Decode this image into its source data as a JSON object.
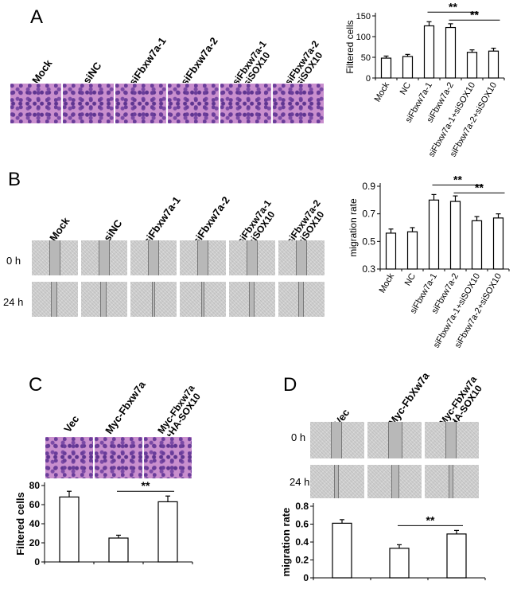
{
  "panels": {
    "A": {
      "letter": "A",
      "image_labels": [
        "Mock",
        "siNC",
        "siFbxw7a-1",
        "siFbxw7a-2",
        "siFbxw7a-1\n+siSOX10",
        "siFbxw7a-2\n+siSOX10"
      ]
    },
    "B": {
      "letter": "B",
      "image_labels": [
        "Mock",
        "siNC",
        "siFbxw7a-1",
        "siFbxw7a-2",
        "siFbxw7a-1\n+siSOX10",
        "siFbxw7a-2\n+siSOX10"
      ],
      "row_labels": [
        "0 h",
        "24 h"
      ]
    },
    "C": {
      "letter": "C",
      "image_labels": [
        "Vec",
        "Myc-Fbxw7a",
        "Myc-Fbxw7a\n+HA-SOX10"
      ]
    },
    "D": {
      "letter": "D",
      "image_labels": [
        "Vec",
        "Myc-FbXw7a",
        "Myc-FbXw7a\n+HA-SOX10"
      ],
      "row_labels": [
        "0 h",
        "24 h"
      ]
    }
  },
  "chart_data": [
    {
      "id": "A",
      "type": "bar",
      "categories": [
        "Mock",
        "NC",
        "siFbxw7a-1",
        "siFbxw7a-2",
        "siFbxw7a-1+siSOX10",
        "siFbxw7a-2+siSOX10"
      ],
      "values": [
        48,
        52,
        126,
        122,
        62,
        65
      ],
      "errors": [
        5,
        5,
        10,
        9,
        6,
        7
      ],
      "ylabel": "Filtered cells",
      "ylim": [
        0,
        150
      ],
      "yticks": [
        0,
        50,
        100,
        150
      ],
      "significance": [
        {
          "from": 3,
          "to": 5,
          "label": "**"
        },
        {
          "from": 4,
          "to": 6,
          "label": "**"
        }
      ]
    },
    {
      "id": "B",
      "type": "bar",
      "categories": [
        "Mock",
        "NC",
        "siFbxw7a-1",
        "siFbxw7a-2",
        "siFbxw7a-1+siSOX10",
        "siFbxw7a-2+siSOX10"
      ],
      "values": [
        0.56,
        0.57,
        0.8,
        0.79,
        0.65,
        0.67
      ],
      "errors": [
        0.03,
        0.03,
        0.04,
        0.04,
        0.03,
        0.03
      ],
      "ylabel": "migration rate",
      "ylim": [
        0.3,
        0.9
      ],
      "yticks": [
        0.3,
        0.5,
        0.7,
        0.9
      ],
      "significance": [
        {
          "from": 3,
          "to": 5,
          "label": "**"
        },
        {
          "from": 4,
          "to": 6,
          "label": "**"
        }
      ]
    },
    {
      "id": "C",
      "type": "bar",
      "categories": [
        "Vec",
        "Myc-Fbxw7a",
        "Myc-Fbxw7a+HA-SOX10"
      ],
      "values": [
        68,
        25,
        63
      ],
      "errors": [
        6,
        3,
        6
      ],
      "ylabel": "Filtered cells",
      "ylim": [
        0,
        80
      ],
      "yticks": [
        0,
        20,
        40,
        60,
        80
      ],
      "significance": [
        {
          "from": 2,
          "to": 3,
          "label": "**"
        }
      ]
    },
    {
      "id": "D",
      "type": "bar",
      "categories": [
        "Vec",
        "Myc-FbXw7a",
        "Myc-FbXw7a+HA-SOX10"
      ],
      "values": [
        0.61,
        0.33,
        0.49
      ],
      "errors": [
        0.04,
        0.04,
        0.04
      ],
      "ylabel": "migration rate",
      "ylim": [
        0,
        0.8
      ],
      "yticks": [
        0,
        0.2,
        0.4,
        0.6,
        0.8
      ],
      "significance": [
        {
          "from": 2,
          "to": 3,
          "label": "**"
        }
      ]
    }
  ]
}
